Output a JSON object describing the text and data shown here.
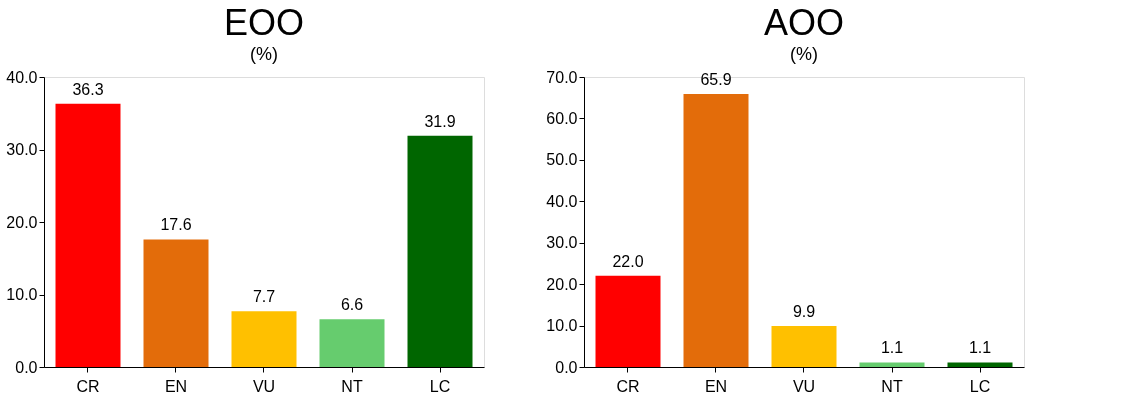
{
  "chart_data": [
    {
      "type": "bar",
      "title": "EOO",
      "subtitle": "(%)",
      "categories": [
        "CR",
        "EN",
        "VU",
        "NT",
        "LC"
      ],
      "values": [
        36.3,
        17.6,
        7.7,
        6.6,
        31.9
      ],
      "value_labels": [
        "36.3",
        "17.6",
        "7.7",
        "6.6",
        "31.9"
      ],
      "colors": [
        "#ff0000",
        "#e36c0a",
        "#ffc000",
        "#66cc6e",
        "#006600"
      ],
      "ylim": [
        0,
        40
      ],
      "yticks": [
        {
          "value": 0,
          "label": "0.0"
        },
        {
          "value": 10,
          "label": "10.0"
        },
        {
          "value": 20,
          "label": "20.0"
        },
        {
          "value": 30,
          "label": "30.0"
        },
        {
          "value": 40,
          "label": "40.0"
        }
      ],
      "grid": false,
      "legend": false
    },
    {
      "type": "bar",
      "title": "AOO",
      "subtitle": "(%)",
      "categories": [
        "CR",
        "EN",
        "VU",
        "NT",
        "LC"
      ],
      "values": [
        22.0,
        65.9,
        9.9,
        1.1,
        1.1
      ],
      "value_labels": [
        "22.0",
        "65.9",
        "9.9",
        "1.1",
        "1.1"
      ],
      "colors": [
        "#ff0000",
        "#e36c0a",
        "#ffc000",
        "#66cc6e",
        "#006600"
      ],
      "ylim": [
        0,
        70
      ],
      "yticks": [
        {
          "value": 0,
          "label": "0.0"
        },
        {
          "value": 10,
          "label": "10.0"
        },
        {
          "value": 20,
          "label": "20.0"
        },
        {
          "value": 30,
          "label": "30.0"
        },
        {
          "value": 40,
          "label": "40.0"
        },
        {
          "value": 50,
          "label": "50.0"
        },
        {
          "value": 60,
          "label": "60.0"
        },
        {
          "value": 70,
          "label": "70.0"
        }
      ],
      "grid": false,
      "legend": false
    }
  ]
}
